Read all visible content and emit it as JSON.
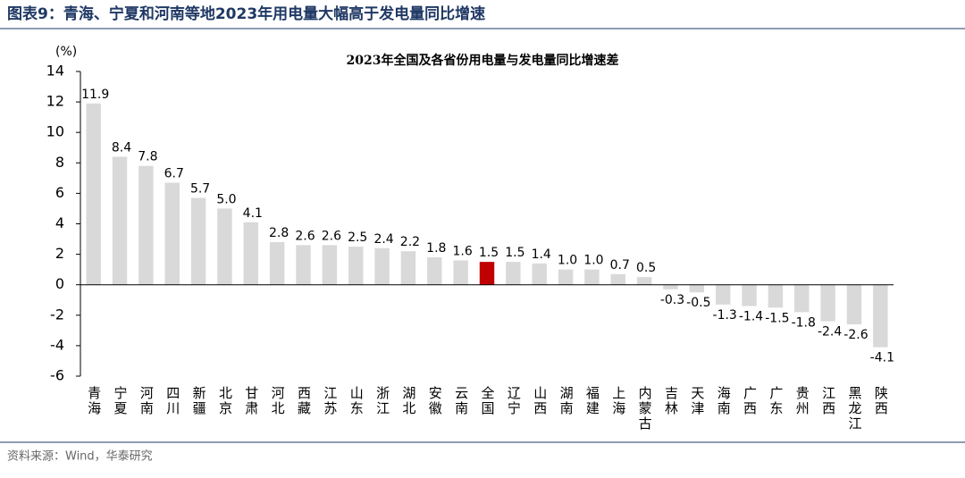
{
  "header": {
    "title": "图表9：青海、宁夏和河南等地2023年用电量大幅高于发电量同比增速"
  },
  "chart_data": {
    "type": "bar",
    "title": "2023年全国及各省份用电量与发电量同比增速差",
    "y_label": "(%)",
    "categories": [
      "青海",
      "宁夏",
      "河南",
      "四川",
      "新疆",
      "北京",
      "甘肃",
      "河北",
      "西藏",
      "江苏",
      "山东",
      "浙江",
      "湖北",
      "安徽",
      "云南",
      "全国",
      "辽宁",
      "山西",
      "湖南",
      "福建",
      "上海",
      "内蒙古",
      "吉林",
      "天津",
      "海南",
      "广西",
      "广东",
      "贵州",
      "江西",
      "黑龙江",
      "陕西"
    ],
    "values": [
      11.9,
      8.4,
      7.8,
      6.7,
      5.7,
      5.0,
      4.1,
      2.8,
      2.6,
      2.6,
      2.5,
      2.4,
      2.2,
      1.8,
      1.6,
      1.5,
      1.5,
      1.4,
      1.0,
      1.0,
      0.7,
      0.5,
      -0.3,
      -0.5,
      -1.3,
      -1.4,
      -1.5,
      -1.8,
      -2.4,
      -2.6,
      -4.1
    ],
    "value_labels": [
      "11.9",
      "8.4",
      "7.8",
      "6.7",
      "5.7",
      "5.0",
      "4.1",
      "2.8",
      "2.6",
      "2.6",
      "2.5",
      "2.4",
      "2.2",
      "1.8",
      "1.6",
      "1.5",
      "1.5",
      "1.4",
      "1.0",
      "1.0",
      "0.7",
      "0.5",
      "-0.3",
      "-0.5",
      "-1.3",
      "-1.4",
      "-1.5",
      "-1.8",
      "-2.4",
      "-2.6",
      "-4.1"
    ],
    "colors": [
      "#d9d9d9",
      "#d9d9d9",
      "#d9d9d9",
      "#d9d9d9",
      "#d9d9d9",
      "#d9d9d9",
      "#d9d9d9",
      "#d9d9d9",
      "#d9d9d9",
      "#d9d9d9",
      "#d9d9d9",
      "#d9d9d9",
      "#d9d9d9",
      "#d9d9d9",
      "#d9d9d9",
      "#c00000",
      "#d9d9d9",
      "#d9d9d9",
      "#d9d9d9",
      "#d9d9d9",
      "#d9d9d9",
      "#d9d9d9",
      "#d9d9d9",
      "#d9d9d9",
      "#d9d9d9",
      "#d9d9d9",
      "#d9d9d9",
      "#d9d9d9",
      "#d9d9d9",
      "#d9d9d9",
      "#d9d9d9"
    ],
    "ylim": [
      -6,
      14
    ],
    "yticks": [
      -6,
      -4,
      -2,
      0,
      2,
      4,
      6,
      8,
      10,
      12,
      14
    ],
    "grid": false
  },
  "footer": {
    "source": "资料来源：Wind，华泰研究"
  }
}
